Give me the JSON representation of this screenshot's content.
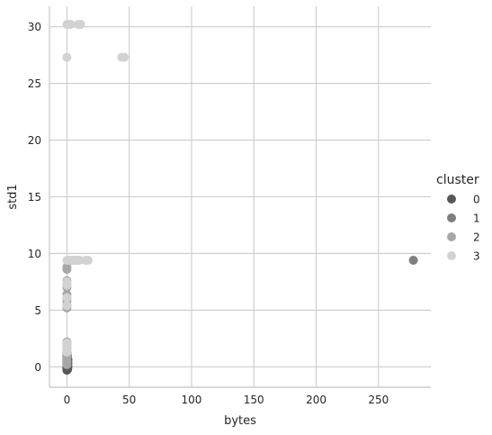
{
  "chart_data": {
    "type": "scatter",
    "xlabel": "bytes",
    "ylabel": "std1",
    "xlim": [
      -14,
      292
    ],
    "ylim": [
      -1.8,
      31.8
    ],
    "xticks": [
      0,
      50,
      100,
      150,
      200,
      250
    ],
    "yticks": [
      0,
      5,
      10,
      15,
      20,
      25,
      30
    ],
    "x_tick_labels": [
      "0",
      "50",
      "100",
      "150",
      "200",
      "250"
    ],
    "y_tick_labels": [
      "0",
      "5",
      "10",
      "15",
      "20",
      "25",
      "30"
    ],
    "grid": true,
    "legend": {
      "title": "cluster",
      "placement": "right"
    },
    "series": [
      {
        "name": "0",
        "color": "#575757",
        "points": [
          [
            0,
            -0.3
          ],
          [
            0,
            -0.2
          ],
          [
            0,
            -0.1
          ],
          [
            0,
            0.0
          ],
          [
            0,
            0.1
          ],
          [
            0,
            0.2
          ],
          [
            0,
            0.3
          ],
          [
            0,
            0.4
          ],
          [
            0,
            0.5
          ],
          [
            0,
            0.6
          ],
          [
            0,
            0.7
          ],
          [
            0,
            0.8
          ],
          [
            0,
            0.9
          ],
          [
            0,
            1.0
          ],
          [
            0,
            1.1
          ],
          [
            0,
            1.2
          ],
          [
            0,
            1.3
          ],
          [
            0.3,
            -0.25
          ],
          [
            0.3,
            0.0
          ],
          [
            0.3,
            0.25
          ],
          [
            0.3,
            0.5
          ],
          [
            0.3,
            0.75
          ],
          [
            0.3,
            1.0
          ],
          [
            0.6,
            -0.2
          ],
          [
            0.6,
            0.1
          ],
          [
            0.6,
            0.4
          ],
          [
            0.6,
            0.7
          ],
          [
            0.8,
            0.0
          ],
          [
            0.8,
            0.3
          ],
          [
            0.8,
            0.6
          ]
        ]
      },
      {
        "name": "1",
        "color": "#7f7f7f",
        "points": [
          [
            278,
            9.4
          ]
        ]
      },
      {
        "name": "2",
        "color": "#a7a7a7",
        "points": [
          [
            0,
            0.2
          ],
          [
            0,
            0.5
          ],
          [
            0,
            0.8
          ],
          [
            0,
            1.1
          ],
          [
            0,
            1.4
          ],
          [
            0,
            1.7
          ],
          [
            0,
            2.0
          ],
          [
            0,
            2.2
          ],
          [
            0,
            5.2
          ],
          [
            0,
            5.5
          ],
          [
            0,
            5.8
          ],
          [
            0,
            6.1
          ],
          [
            0,
            6.4
          ],
          [
            0,
            7.0
          ],
          [
            0,
            7.3
          ],
          [
            0,
            7.6
          ],
          [
            0,
            8.6
          ],
          [
            0,
            8.8
          ]
        ]
      },
      {
        "name": "3",
        "color": "#d2d2d2",
        "points": [
          [
            0,
            30.2
          ],
          [
            1,
            30.2
          ],
          [
            2,
            30.2
          ],
          [
            3,
            30.2
          ],
          [
            9,
            30.2
          ],
          [
            11,
            30.2
          ],
          [
            0,
            27.3
          ],
          [
            44,
            27.3
          ],
          [
            46,
            27.3
          ],
          [
            0,
            9.4
          ],
          [
            1,
            9.4
          ],
          [
            2,
            9.4
          ],
          [
            3,
            9.4
          ],
          [
            4,
            9.4
          ],
          [
            5,
            9.4
          ],
          [
            6,
            9.4
          ],
          [
            7,
            9.4
          ],
          [
            8,
            9.4
          ],
          [
            9,
            9.4
          ],
          [
            10,
            9.4
          ],
          [
            15,
            9.4
          ],
          [
            17,
            9.4
          ],
          [
            0,
            7.5
          ],
          [
            0,
            7.2
          ],
          [
            0,
            6.1
          ],
          [
            0,
            5.4
          ],
          [
            0,
            2.1
          ],
          [
            0,
            1.9
          ],
          [
            0,
            1.6
          ],
          [
            0,
            1.3
          ]
        ]
      }
    ]
  }
}
